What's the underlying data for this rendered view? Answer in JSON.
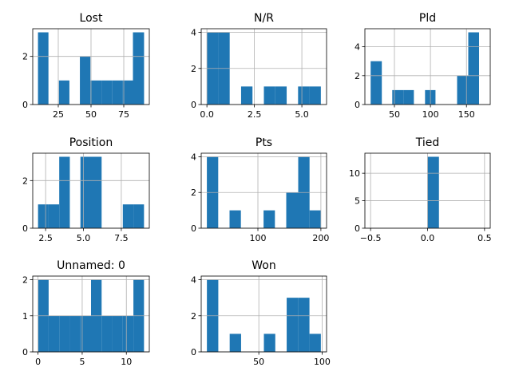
{
  "chart_data": [
    {
      "type": "bar",
      "title": "Lost",
      "xlim": [
        5.5,
        94.5
      ],
      "ylim": [
        0,
        3.15
      ],
      "xticks": [
        {
          "v": 25,
          "label": "25"
        },
        {
          "v": 50,
          "label": "50"
        },
        {
          "v": 75,
          "label": "75"
        }
      ],
      "yticks": [
        {
          "v": 0,
          "label": "0"
        },
        {
          "v": 2,
          "label": "2"
        }
      ],
      "bins": [
        {
          "x0": 9.5,
          "x1": 17.5,
          "count": 3
        },
        {
          "x0": 17.5,
          "x1": 25.5,
          "count": 0
        },
        {
          "x0": 25.5,
          "x1": 33.5,
          "count": 1
        },
        {
          "x0": 33.5,
          "x1": 41.5,
          "count": 0
        },
        {
          "x0": 41.5,
          "x1": 49.5,
          "count": 2
        },
        {
          "x0": 49.5,
          "x1": 58.0,
          "count": 1
        },
        {
          "x0": 58.0,
          "x1": 66.0,
          "count": 1
        },
        {
          "x0": 66.0,
          "x1": 74.0,
          "count": 1
        },
        {
          "x0": 74.0,
          "x1": 82.0,
          "count": 1
        },
        {
          "x0": 82.0,
          "x1": 90.5,
          "count": 3
        }
      ]
    },
    {
      "type": "bar",
      "title": "N/R",
      "xlim": [
        -0.3,
        6.3
      ],
      "ylim": [
        0,
        4.2
      ],
      "xticks": [
        {
          "v": 0,
          "label": "0.0"
        },
        {
          "v": 2.5,
          "label": "2.5"
        },
        {
          "v": 5,
          "label": "5.0"
        }
      ],
      "yticks": [
        {
          "v": 0,
          "label": "0"
        },
        {
          "v": 2,
          "label": "2"
        },
        {
          "v": 4,
          "label": "4"
        }
      ],
      "bins": [
        {
          "x0": 0.0,
          "x1": 0.6,
          "count": 4
        },
        {
          "x0": 0.6,
          "x1": 1.2,
          "count": 4
        },
        {
          "x0": 1.2,
          "x1": 1.8,
          "count": 0
        },
        {
          "x0": 1.8,
          "x1": 2.4,
          "count": 1
        },
        {
          "x0": 2.4,
          "x1": 3.0,
          "count": 0
        },
        {
          "x0": 3.0,
          "x1": 3.6,
          "count": 1
        },
        {
          "x0": 3.6,
          "x1": 4.2,
          "count": 1
        },
        {
          "x0": 4.2,
          "x1": 4.8,
          "count": 0
        },
        {
          "x0": 4.8,
          "x1": 5.4,
          "count": 1
        },
        {
          "x0": 5.4,
          "x1": 6.0,
          "count": 1
        }
      ]
    },
    {
      "type": "bar",
      "title": "Pld",
      "xlim": [
        9.0,
        183.0
      ],
      "ylim": [
        0,
        5.25
      ],
      "xticks": [
        {
          "v": 50,
          "label": "50"
        },
        {
          "v": 100,
          "label": "100"
        },
        {
          "v": 150,
          "label": "150"
        }
      ],
      "yticks": [
        {
          "v": 0,
          "label": "0"
        },
        {
          "v": 2,
          "label": "2"
        },
        {
          "v": 4,
          "label": "4"
        }
      ],
      "bins": [
        {
          "x0": 17.0,
          "x1": 32.5,
          "count": 3
        },
        {
          "x0": 32.5,
          "x1": 47.0,
          "count": 0
        },
        {
          "x0": 47.0,
          "x1": 62.5,
          "count": 1
        },
        {
          "x0": 62.5,
          "x1": 77.0,
          "count": 1
        },
        {
          "x0": 77.0,
          "x1": 92.5,
          "count": 0
        },
        {
          "x0": 92.5,
          "x1": 107.0,
          "count": 1
        },
        {
          "x0": 107.0,
          "x1": 122.5,
          "count": 0
        },
        {
          "x0": 122.5,
          "x1": 137.0,
          "count": 0
        },
        {
          "x0": 137.0,
          "x1": 152.5,
          "count": 2
        },
        {
          "x0": 152.5,
          "x1": 167.5,
          "count": 5
        }
      ]
    },
    {
      "type": "bar",
      "title": "Position",
      "xlim": [
        1.65,
        9.35
      ],
      "ylim": [
        0,
        3.15
      ],
      "xticks": [
        {
          "v": 2.5,
          "label": "2.5"
        },
        {
          "v": 5.0,
          "label": "5.0"
        },
        {
          "v": 7.5,
          "label": "7.5"
        }
      ],
      "yticks": [
        {
          "v": 0,
          "label": "0"
        },
        {
          "v": 2,
          "label": "2"
        }
      ],
      "bins": [
        {
          "x0": 2.0,
          "x1": 2.7,
          "count": 1
        },
        {
          "x0": 2.7,
          "x1": 3.4,
          "count": 1
        },
        {
          "x0": 3.4,
          "x1": 4.1,
          "count": 3
        },
        {
          "x0": 4.1,
          "x1": 4.8,
          "count": 0
        },
        {
          "x0": 4.8,
          "x1": 5.5,
          "count": 3
        },
        {
          "x0": 5.5,
          "x1": 6.2,
          "count": 3
        },
        {
          "x0": 6.2,
          "x1": 6.9,
          "count": 0
        },
        {
          "x0": 6.9,
          "x1": 7.6,
          "count": 0
        },
        {
          "x0": 7.6,
          "x1": 8.3,
          "count": 1
        },
        {
          "x0": 8.3,
          "x1": 9.0,
          "count": 1
        }
      ]
    },
    {
      "type": "bar",
      "title": "Pts",
      "xlim": [
        10.0,
        209.0
      ],
      "ylim": [
        0,
        4.2
      ],
      "xticks": [
        {
          "v": 100,
          "label": "100"
        },
        {
          "v": 200,
          "label": "200"
        }
      ],
      "yticks": [
        {
          "v": 0,
          "label": "0"
        },
        {
          "v": 2,
          "label": "2"
        },
        {
          "v": 4,
          "label": "4"
        }
      ],
      "bins": [
        {
          "x0": 19.0,
          "x1": 37.0,
          "count": 4
        },
        {
          "x0": 37.0,
          "x1": 55.0,
          "count": 0
        },
        {
          "x0": 55.0,
          "x1": 73.0,
          "count": 1
        },
        {
          "x0": 73.0,
          "x1": 91.0,
          "count": 0
        },
        {
          "x0": 91.0,
          "x1": 109.0,
          "count": 0
        },
        {
          "x0": 109.0,
          "x1": 127.0,
          "count": 1
        },
        {
          "x0": 127.0,
          "x1": 145.0,
          "count": 0
        },
        {
          "x0": 145.0,
          "x1": 164.0,
          "count": 2
        },
        {
          "x0": 164.0,
          "x1": 182.0,
          "count": 4
        },
        {
          "x0": 182.0,
          "x1": 200.0,
          "count": 1
        }
      ]
    },
    {
      "type": "bar",
      "title": "Tied",
      "xlim": [
        -0.55,
        0.55
      ],
      "ylim": [
        0,
        13.65
      ],
      "xticks": [
        {
          "v": -0.5,
          "label": "−0.5"
        },
        {
          "v": 0,
          "label": "0.0"
        },
        {
          "v": 0.5,
          "label": "0.5"
        }
      ],
      "yticks": [
        {
          "v": 0,
          "label": "0"
        },
        {
          "v": 5,
          "label": "5"
        },
        {
          "v": 10,
          "label": "10"
        }
      ],
      "bins": [
        {
          "x0": -0.5,
          "x1": -0.4,
          "count": 0
        },
        {
          "x0": -0.4,
          "x1": -0.3,
          "count": 0
        },
        {
          "x0": -0.3,
          "x1": -0.2,
          "count": 0
        },
        {
          "x0": -0.2,
          "x1": -0.1,
          "count": 0
        },
        {
          "x0": -0.1,
          "x1": 0.0,
          "count": 0
        },
        {
          "x0": 0.0,
          "x1": 0.1,
          "count": 13
        },
        {
          "x0": 0.1,
          "x1": 0.2,
          "count": 0
        },
        {
          "x0": 0.2,
          "x1": 0.3,
          "count": 0
        },
        {
          "x0": 0.3,
          "x1": 0.4,
          "count": 0
        },
        {
          "x0": 0.4,
          "x1": 0.5,
          "count": 0
        }
      ]
    },
    {
      "type": "bar",
      "title": "Unnamed: 0",
      "xlim": [
        -0.6,
        12.6
      ],
      "ylim": [
        0,
        2.1
      ],
      "xticks": [
        {
          "v": 0,
          "label": "0"
        },
        {
          "v": 5,
          "label": "5"
        },
        {
          "v": 10,
          "label": "10"
        }
      ],
      "yticks": [
        {
          "v": 0,
          "label": "0"
        },
        {
          "v": 1,
          "label": "1"
        },
        {
          "v": 2,
          "label": "2"
        }
      ],
      "bins": [
        {
          "x0": 0.0,
          "x1": 1.2,
          "count": 2
        },
        {
          "x0": 1.2,
          "x1": 2.4,
          "count": 1
        },
        {
          "x0": 2.4,
          "x1": 3.6,
          "count": 1
        },
        {
          "x0": 3.6,
          "x1": 4.8,
          "count": 1
        },
        {
          "x0": 4.8,
          "x1": 6.0,
          "count": 1
        },
        {
          "x0": 6.0,
          "x1": 7.2,
          "count": 2
        },
        {
          "x0": 7.2,
          "x1": 8.4,
          "count": 1
        },
        {
          "x0": 8.4,
          "x1": 9.6,
          "count": 1
        },
        {
          "x0": 9.6,
          "x1": 10.8,
          "count": 1
        },
        {
          "x0": 10.8,
          "x1": 12.0,
          "count": 2
        }
      ]
    },
    {
      "type": "bar",
      "title": "Won",
      "xlim": [
        4.5,
        103.5
      ],
      "ylim": [
        0,
        4.2
      ],
      "xticks": [
        {
          "v": 50,
          "label": "50"
        },
        {
          "v": 100,
          "label": "100"
        }
      ],
      "yticks": [
        {
          "v": 0,
          "label": "0"
        },
        {
          "v": 2,
          "label": "2"
        },
        {
          "v": 4,
          "label": "4"
        }
      ],
      "bins": [
        {
          "x0": 9.0,
          "x1": 18.0,
          "count": 4
        },
        {
          "x0": 18.0,
          "x1": 27.0,
          "count": 0
        },
        {
          "x0": 27.0,
          "x1": 36.0,
          "count": 1
        },
        {
          "x0": 36.0,
          "x1": 45.0,
          "count": 0
        },
        {
          "x0": 45.0,
          "x1": 54.0,
          "count": 0
        },
        {
          "x0": 54.0,
          "x1": 63.0,
          "count": 1
        },
        {
          "x0": 63.0,
          "x1": 72.0,
          "count": 0
        },
        {
          "x0": 72.0,
          "x1": 81.0,
          "count": 3
        },
        {
          "x0": 81.0,
          "x1": 90.0,
          "count": 3
        },
        {
          "x0": 90.0,
          "x1": 99.0,
          "count": 1
        }
      ]
    }
  ],
  "colors": {
    "bar": "#1f77b4",
    "grid": "#b0b0b0"
  }
}
